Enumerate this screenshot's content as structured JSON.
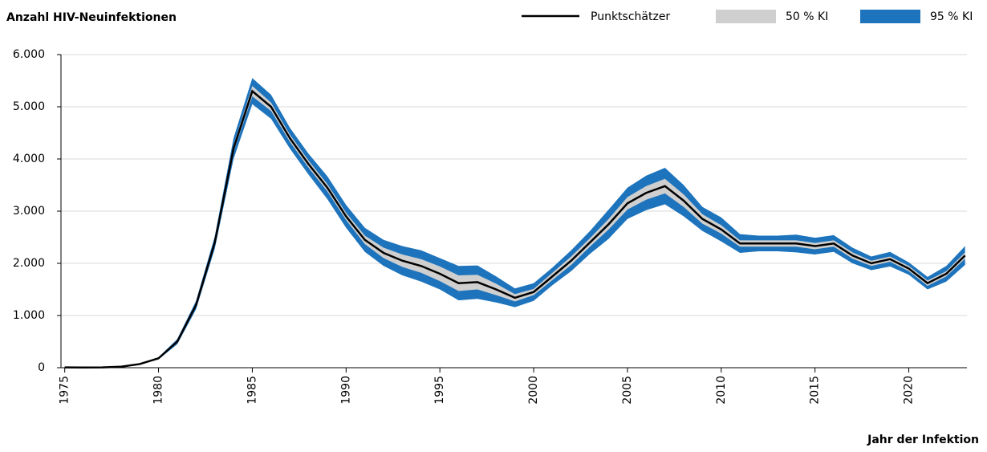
{
  "chart_data": {
    "type": "line",
    "title": "Anzahl HIV-Neuinfektionen",
    "x_label": "Jahr der Infektion",
    "x": [
      1975,
      1976,
      1977,
      1978,
      1979,
      1980,
      1981,
      1982,
      1983,
      1984,
      1985,
      1986,
      1987,
      1988,
      1989,
      1990,
      1991,
      1992,
      1993,
      1994,
      1995,
      1996,
      1997,
      1998,
      1999,
      2000,
      2001,
      2002,
      2003,
      2004,
      2005,
      2006,
      2007,
      2008,
      2009,
      2010,
      2011,
      2012,
      2013,
      2014,
      2015,
      2016,
      2017,
      2018,
      2019,
      2020,
      2021,
      2022,
      2023
    ],
    "series": [
      {
        "name": "Punktschätzer",
        "color": "#000000",
        "values": [
          5,
          3,
          5,
          20,
          70,
          180,
          500,
          1200,
          2400,
          4200,
          5300,
          5000,
          4400,
          3900,
          3450,
          2900,
          2450,
          2200,
          2050,
          1950,
          1800,
          1620,
          1640,
          1500,
          1340,
          1450,
          1750,
          2050,
          2400,
          2750,
          3150,
          3350,
          3480,
          3200,
          2850,
          2650,
          2380,
          2380,
          2380,
          2380,
          2330,
          2380,
          2150,
          2000,
          2080,
          1900,
          1620,
          1800,
          2150
        ]
      }
    ],
    "bands": [
      {
        "name": "50 % KI",
        "color": "#cfcfcf",
        "low": [
          5,
          3,
          5,
          20,
          65,
          170,
          480,
          1170,
          2350,
          4130,
          5200,
          4920,
          4330,
          3830,
          3380,
          2830,
          2370,
          2100,
          1930,
          1820,
          1660,
          1470,
          1500,
          1390,
          1270,
          1390,
          1680,
          1970,
          2320,
          2650,
          3030,
          3220,
          3340,
          3080,
          2760,
          2570,
          2320,
          2320,
          2320,
          2320,
          2270,
          2320,
          2090,
          1950,
          2030,
          1850,
          1570,
          1750,
          2090
        ],
        "high": [
          5,
          3,
          5,
          20,
          75,
          190,
          520,
          1230,
          2450,
          4270,
          5400,
          5080,
          4470,
          3970,
          3520,
          2970,
          2530,
          2300,
          2170,
          2080,
          1940,
          1770,
          1780,
          1610,
          1410,
          1510,
          1820,
          2130,
          2480,
          2850,
          3270,
          3480,
          3620,
          3320,
          2940,
          2730,
          2440,
          2440,
          2440,
          2440,
          2390,
          2440,
          2210,
          2050,
          2130,
          1950,
          1670,
          1850,
          2210
        ]
      },
      {
        "name": "95 % KI",
        "color": "#1d74bd",
        "low": [
          5,
          3,
          5,
          20,
          60,
          160,
          450,
          1120,
          2280,
          4000,
          5050,
          4770,
          4200,
          3700,
          3230,
          2680,
          2220,
          1950,
          1770,
          1650,
          1500,
          1290,
          1320,
          1250,
          1160,
          1280,
          1580,
          1850,
          2180,
          2470,
          2850,
          3020,
          3130,
          2900,
          2620,
          2420,
          2200,
          2230,
          2230,
          2210,
          2170,
          2220,
          2000,
          1870,
          1940,
          1780,
          1500,
          1650,
          1970
        ],
        "high": [
          5,
          3,
          5,
          20,
          80,
          200,
          550,
          1280,
          2520,
          4400,
          5550,
          5230,
          4600,
          4100,
          3670,
          3120,
          2680,
          2450,
          2330,
          2250,
          2100,
          1950,
          1960,
          1750,
          1520,
          1620,
          1920,
          2250,
          2620,
          3030,
          3450,
          3680,
          3830,
          3500,
          3080,
          2880,
          2560,
          2530,
          2530,
          2550,
          2490,
          2540,
          2300,
          2130,
          2220,
          2020,
          1740,
          1950,
          2330
        ]
      }
    ],
    "xlim": [
      1974.8,
      2023.1
    ],
    "xticks": [
      1975,
      1980,
      1985,
      1990,
      1995,
      2000,
      2005,
      2010,
      2015,
      2020
    ],
    "ylim": [
      0,
      6000
    ],
    "yticks": [
      0,
      {
        "value": 1000,
        "label": "1.000"
      },
      {
        "value": 2000,
        "label": "2.000"
      },
      {
        "value": 3000,
        "label": "3.000"
      },
      {
        "value": 4000,
        "label": "4.000"
      },
      {
        "value": 5000,
        "label": "5.000"
      },
      {
        "value": 6000,
        "label": "6.000"
      }
    ],
    "grid": true
  }
}
